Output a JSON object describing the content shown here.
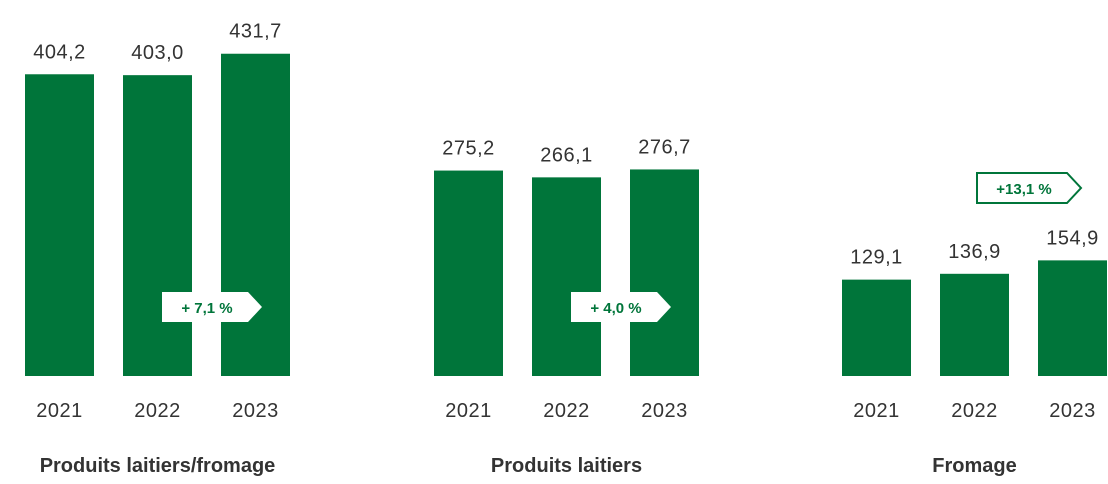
{
  "colors": {
    "bar": "#00753a",
    "text": "#333333",
    "badge_text": "#00753a",
    "background": "#ffffff"
  },
  "chart_data": [
    {
      "type": "bar",
      "title": "Produits laitiers/fromage",
      "categories": [
        "2021",
        "2022",
        "2023"
      ],
      "values": [
        404.2,
        403.0,
        431.7
      ],
      "value_labels": [
        "404,2",
        "403,0",
        "431,7"
      ],
      "change_label": "+ 7,1 %"
    },
    {
      "type": "bar",
      "title": "Produits laitiers",
      "categories": [
        "2021",
        "2022",
        "2023"
      ],
      "values": [
        275.2,
        266.1,
        276.7
      ],
      "value_labels": [
        "275,2",
        "266,1",
        "276,7"
      ],
      "change_label": "+ 4,0 %"
    },
    {
      "type": "bar",
      "title": "Fromage",
      "categories": [
        "2021",
        "2022",
        "2023"
      ],
      "values": [
        129.1,
        136.9,
        154.9
      ],
      "value_labels": [
        "129,1",
        "136,9",
        "154,9"
      ],
      "change_label": "+13,1 %"
    }
  ]
}
